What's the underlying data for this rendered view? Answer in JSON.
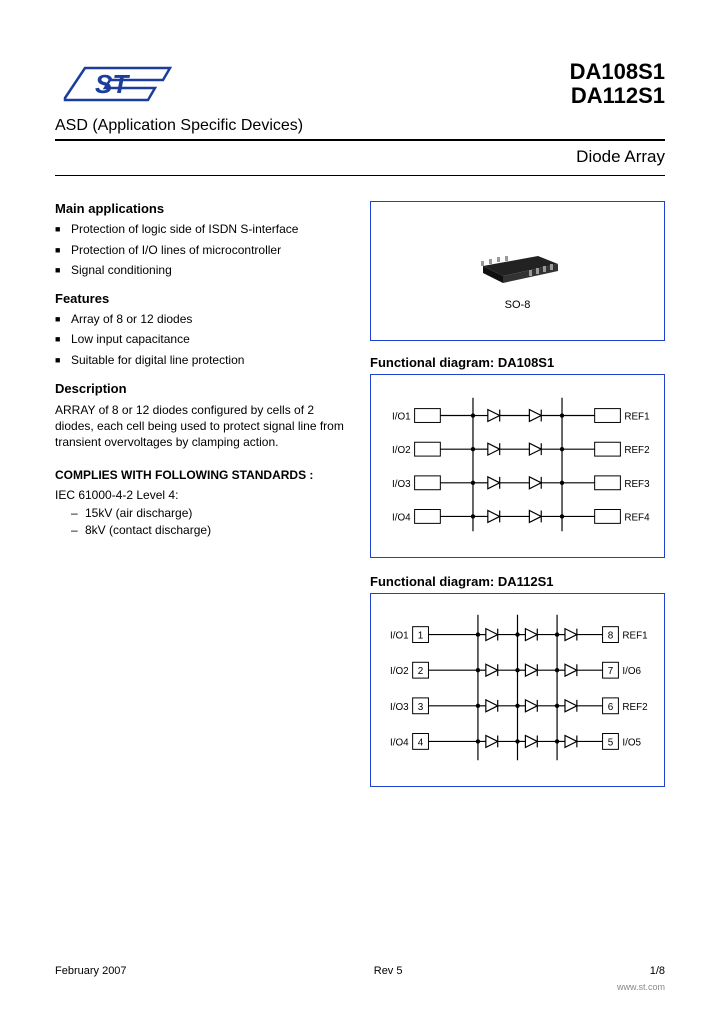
{
  "header": {
    "part1": "DA108S1",
    "part2": "DA112S1",
    "asd": "ASD (Application Specific Devices)",
    "subtitle": "Diode Array"
  },
  "sections": {
    "main_apps_title": "Main applications",
    "main_apps": [
      "Protection of logic side of ISDN S-interface",
      "Protection of I/O lines of microcontroller",
      "Signal conditioning"
    ],
    "features_title": "Features",
    "features": [
      "Array of 8 or 12 diodes",
      "Low input capacitance",
      "Suitable for digital line protection"
    ],
    "description_title": "Description",
    "description": "ARRAY of 8 or 12 diodes configured by cells of 2 diodes, each cell being used to protect signal line from transient overvoltages by clamping action.",
    "standards_title": "COMPLIES WITH FOLLOWING STANDARDS :",
    "standards_sub": "IEC 61000-4-2 Level 4:",
    "standards": [
      "15kV (air discharge)",
      "8kV (contact discharge)"
    ]
  },
  "package": {
    "label": "SO-8"
  },
  "diagram1": {
    "title": "Functional diagram: DA108S1",
    "left": [
      "I/O1",
      "I/O2",
      "I/O3",
      "I/O4"
    ],
    "right": [
      "REF1",
      "REF2",
      "REF3",
      "REF4"
    ]
  },
  "diagram2": {
    "title": "Functional diagram: DA112S1",
    "left": [
      "I/O1",
      "I/O2",
      "I/O3",
      "I/O4"
    ],
    "leftnum": [
      "1",
      "2",
      "3",
      "4"
    ],
    "right": [
      "REF1",
      "I/O6",
      "REF2",
      "I/O5"
    ],
    "rightnum": [
      "8",
      "7",
      "6",
      "5"
    ]
  },
  "footer": {
    "date": "February 2007",
    "rev": "Rev 5",
    "page": "1/8",
    "url": "www.st.com"
  },
  "colors": {
    "border": "#2040d0",
    "text": "#000000",
    "logo_blue": "#1b3e9c"
  }
}
